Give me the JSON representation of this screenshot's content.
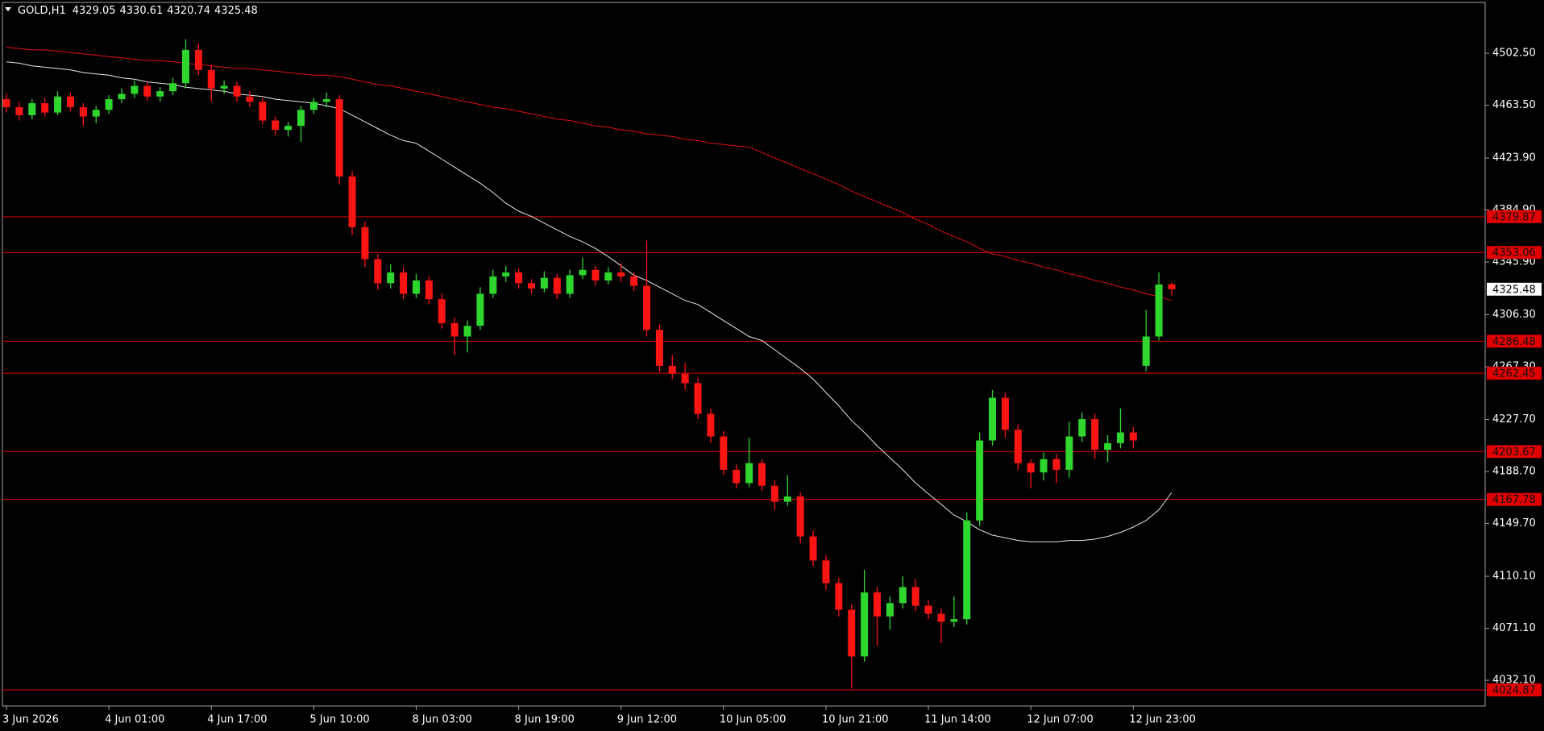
{
  "chart_data": {
    "type": "candlestick",
    "title": "GOLD,H1",
    "up_color": "#2ed62e",
    "down_color": "#ff1414",
    "level_color": "#e00000",
    "ylim": [
      4012.8,
      4540.6
    ],
    "yticks": [
      {
        "value": 4502.5,
        "label": "4502.50"
      },
      {
        "value": 4463.5,
        "label": "4463.50"
      },
      {
        "value": 4423.9,
        "label": "4423.90"
      },
      {
        "value": 4384.9,
        "label": "4384.90"
      },
      {
        "value": 4345.9,
        "label": "4345.90"
      },
      {
        "value": 4306.3,
        "label": "4306.30"
      },
      {
        "value": 4267.3,
        "label": "4267.30"
      },
      {
        "value": 4227.7,
        "label": "4227.70"
      },
      {
        "value": 4188.7,
        "label": "4188.70"
      },
      {
        "value": 4149.7,
        "label": "4149.70"
      },
      {
        "value": 4110.1,
        "label": "4110.10"
      },
      {
        "value": 4071.1,
        "label": "4071.10"
      },
      {
        "value": 4032.1,
        "label": "4032.10"
      }
    ],
    "levels": [
      4379.87,
      4353.06,
      4286.48,
      4262.45,
      4203.67,
      4167.78,
      4024.87
    ],
    "categories": [
      "3 Jun 2026",
      null,
      null,
      null,
      null,
      null,
      null,
      null,
      "4 Jun 01:00",
      null,
      null,
      null,
      null,
      null,
      null,
      null,
      "4 Jun 17:00",
      null,
      null,
      null,
      null,
      null,
      null,
      null,
      "5 Jun 10:00",
      null,
      null,
      null,
      null,
      null,
      null,
      null,
      "8 Jun 03:00",
      null,
      null,
      null,
      null,
      null,
      null,
      null,
      "8 Jun 19:00",
      null,
      null,
      null,
      null,
      null,
      null,
      null,
      "9 Jun 12:00",
      null,
      null,
      null,
      null,
      null,
      null,
      null,
      "10 Jun 05:00",
      null,
      null,
      null,
      null,
      null,
      null,
      null,
      "10 Jun 21:00",
      null,
      null,
      null,
      null,
      null,
      null,
      null,
      "11 Jun 14:00",
      null,
      null,
      null,
      null,
      null,
      null,
      null,
      "12 Jun 07:00",
      null,
      null,
      null,
      null,
      null,
      null,
      null,
      "12 Jun 23:00",
      null,
      null,
      null
    ],
    "ohlc": [
      [
        4468,
        4472,
        4458,
        4462
      ],
      [
        4462,
        4466,
        4452,
        4456
      ],
      [
        4456,
        4468,
        4453,
        4465
      ],
      [
        4465,
        4469,
        4455,
        4458
      ],
      [
        4458,
        4474,
        4456,
        4470
      ],
      [
        4470,
        4473,
        4459,
        4462
      ],
      [
        4462,
        4465,
        4448,
        4455
      ],
      [
        4455,
        4463,
        4450,
        4460
      ],
      [
        4460,
        4471,
        4457,
        4468
      ],
      [
        4468,
        4476,
        4465,
        4472
      ],
      [
        4472,
        4482,
        4469,
        4478
      ],
      [
        4478,
        4481,
        4467,
        4470
      ],
      [
        4470,
        4477,
        4466,
        4474
      ],
      [
        4474,
        4484,
        4471,
        4480
      ],
      [
        4480,
        4513,
        4476,
        4505
      ],
      [
        4505,
        4510,
        4486,
        4490
      ],
      [
        4490,
        4494,
        4466,
        4476
      ],
      [
        4476,
        4482,
        4472,
        4478
      ],
      [
        4478,
        4481,
        4466,
        4470
      ],
      [
        4470,
        4474,
        4462,
        4466
      ],
      [
        4466,
        4469,
        4449,
        4452
      ],
      [
        4452,
        4455,
        4441,
        4445
      ],
      [
        4445,
        4451,
        4440,
        4448
      ],
      [
        4448,
        4463,
        4436,
        4460
      ],
      [
        4460,
        4469,
        4457,
        4466
      ],
      [
        4466,
        4473,
        4462,
        4468
      ],
      [
        4468,
        4471,
        4404,
        4410
      ],
      [
        4410,
        4414,
        4366,
        4372
      ],
      [
        4372,
        4376,
        4342,
        4348
      ],
      [
        4348,
        4352,
        4325,
        4330
      ],
      [
        4330,
        4344,
        4326,
        4338
      ],
      [
        4338,
        4342,
        4318,
        4322
      ],
      [
        4322,
        4337,
        4319,
        4332
      ],
      [
        4332,
        4335,
        4314,
        4318
      ],
      [
        4318,
        4322,
        4296,
        4300
      ],
      [
        4300,
        4304,
        4276,
        4290
      ],
      [
        4290,
        4302,
        4278,
        4298
      ],
      [
        4298,
        4327,
        4295,
        4322
      ],
      [
        4322,
        4340,
        4319,
        4335
      ],
      [
        4335,
        4343,
        4331,
        4338
      ],
      [
        4338,
        4341,
        4326,
        4330
      ],
      [
        4330,
        4333,
        4322,
        4326
      ],
      [
        4326,
        4339,
        4323,
        4334
      ],
      [
        4334,
        4337,
        4318,
        4322
      ],
      [
        4322,
        4340,
        4319,
        4336
      ],
      [
        4336,
        4349,
        4333,
        4340
      ],
      [
        4340,
        4343,
        4328,
        4332
      ],
      [
        4332,
        4342,
        4329,
        4338
      ],
      [
        4338,
        4345,
        4331,
        4335
      ],
      [
        4335,
        4338,
        4324,
        4328
      ],
      [
        4328,
        4362,
        4290,
        4295
      ],
      [
        4295,
        4299,
        4263,
        4268
      ],
      [
        4268,
        4276,
        4258,
        4262
      ],
      [
        4262,
        4270,
        4250,
        4255
      ],
      [
        4255,
        4259,
        4228,
        4232
      ],
      [
        4232,
        4236,
        4210,
        4215
      ],
      [
        4215,
        4219,
        4186,
        4190
      ],
      [
        4190,
        4194,
        4176,
        4180
      ],
      [
        4180,
        4214,
        4177,
        4195
      ],
      [
        4195,
        4198,
        4174,
        4178
      ],
      [
        4178,
        4182,
        4160,
        4166
      ],
      [
        4166,
        4186,
        4163,
        4170
      ],
      [
        4170,
        4173,
        4135,
        4140
      ],
      [
        4140,
        4144,
        4118,
        4122
      ],
      [
        4122,
        4126,
        4100,
        4105
      ],
      [
        4105,
        4109,
        4080,
        4085
      ],
      [
        4085,
        4089,
        4026,
        4050
      ],
      [
        4050,
        4115,
        4046,
        4098
      ],
      [
        4098,
        4102,
        4058,
        4080
      ],
      [
        4080,
        4095,
        4070,
        4090
      ],
      [
        4090,
        4110,
        4086,
        4102
      ],
      [
        4102,
        4108,
        4084,
        4088
      ],
      [
        4088,
        4092,
        4078,
        4082
      ],
      [
        4082,
        4086,
        4060,
        4076
      ],
      [
        4076,
        4095,
        4072,
        4078
      ],
      [
        4078,
        4158,
        4074,
        4152
      ],
      [
        4152,
        4218,
        4148,
        4212
      ],
      [
        4212,
        4250,
        4208,
        4244
      ],
      [
        4244,
        4248,
        4214,
        4220
      ],
      [
        4220,
        4224,
        4190,
        4195
      ],
      [
        4195,
        4198,
        4176,
        4188
      ],
      [
        4188,
        4203,
        4182,
        4198
      ],
      [
        4198,
        4202,
        4180,
        4190
      ],
      [
        4190,
        4226,
        4184,
        4215
      ],
      [
        4215,
        4233,
        4211,
        4228
      ],
      [
        4228,
        4232,
        4198,
        4205
      ],
      [
        4205,
        4216,
        4196,
        4210
      ],
      [
        4210,
        4236,
        4206,
        4218
      ],
      [
        4218,
        4222,
        4206,
        4212
      ],
      [
        4268,
        4310,
        4264,
        4290
      ],
      [
        4290,
        4338,
        4287,
        4329
      ],
      [
        4329.05,
        4330.61,
        4320.74,
        4325.48
      ]
    ],
    "lines": [
      {
        "color": "#e6e6e6",
        "values": [
          4496,
          4495,
          4493,
          4492,
          4491,
          4490,
          4488,
          4487,
          4486,
          4484,
          4483,
          4481,
          4480,
          4479,
          4477,
          4476,
          4475,
          4474,
          4472,
          4471,
          4470,
          4468,
          4467,
          4466,
          4465,
          4463,
          4461,
          4456,
          4451,
          4446,
          4441,
          4437,
          4435,
          4429,
          4423,
          4417,
          4411,
          4405,
          4398,
          4390,
          4384,
          4380,
          4375,
          4370,
          4365,
          4361,
          4356,
          4350,
          4343,
          4336,
          4332,
          4327,
          4322,
          4317,
          4314,
          4308,
          4302,
          4296,
          4290,
          4287,
          4280,
          4273,
          4266,
          4258,
          4248,
          4238,
          4227,
          4218,
          4208,
          4199,
          4190,
          4180,
          4172,
          4164,
          4156,
          4151,
          4145,
          4141,
          4139,
          4137,
          4136,
          4136,
          4136,
          4137,
          4137,
          4138,
          4140,
          4143,
          4147,
          4152,
          4160,
          4173
        ]
      },
      {
        "color": "#e01010",
        "values": [
          4507,
          4506,
          4505,
          4505,
          4504,
          4503,
          4502,
          4501,
          4500,
          4499,
          4498,
          4497,
          4497,
          4496,
          4495,
          4494,
          4493,
          4492,
          4491,
          4491,
          4490,
          4489,
          4488,
          4487,
          4486,
          4486,
          4485,
          4483,
          4481,
          4479,
          4478,
          4476,
          4474,
          4472,
          4470,
          4468,
          4466,
          4464,
          4462,
          4461,
          4459,
          4457,
          4455,
          4453,
          4452,
          4450,
          4448,
          4447,
          4445,
          4444,
          4442,
          4441,
          4440,
          4438,
          4437,
          4435,
          4434,
          4433,
          4432,
          4428,
          4424,
          4420,
          4416,
          4412,
          4408,
          4404,
          4399,
          4395,
          4391,
          4387,
          4383,
          4378,
          4374,
          4369,
          4365,
          4361,
          4356,
          4352,
          4350,
          4347,
          4345,
          4342,
          4340,
          4337,
          4335,
          4332,
          4330,
          4327,
          4325,
          4322,
          4320,
          4317
        ]
      }
    ]
  }
}
